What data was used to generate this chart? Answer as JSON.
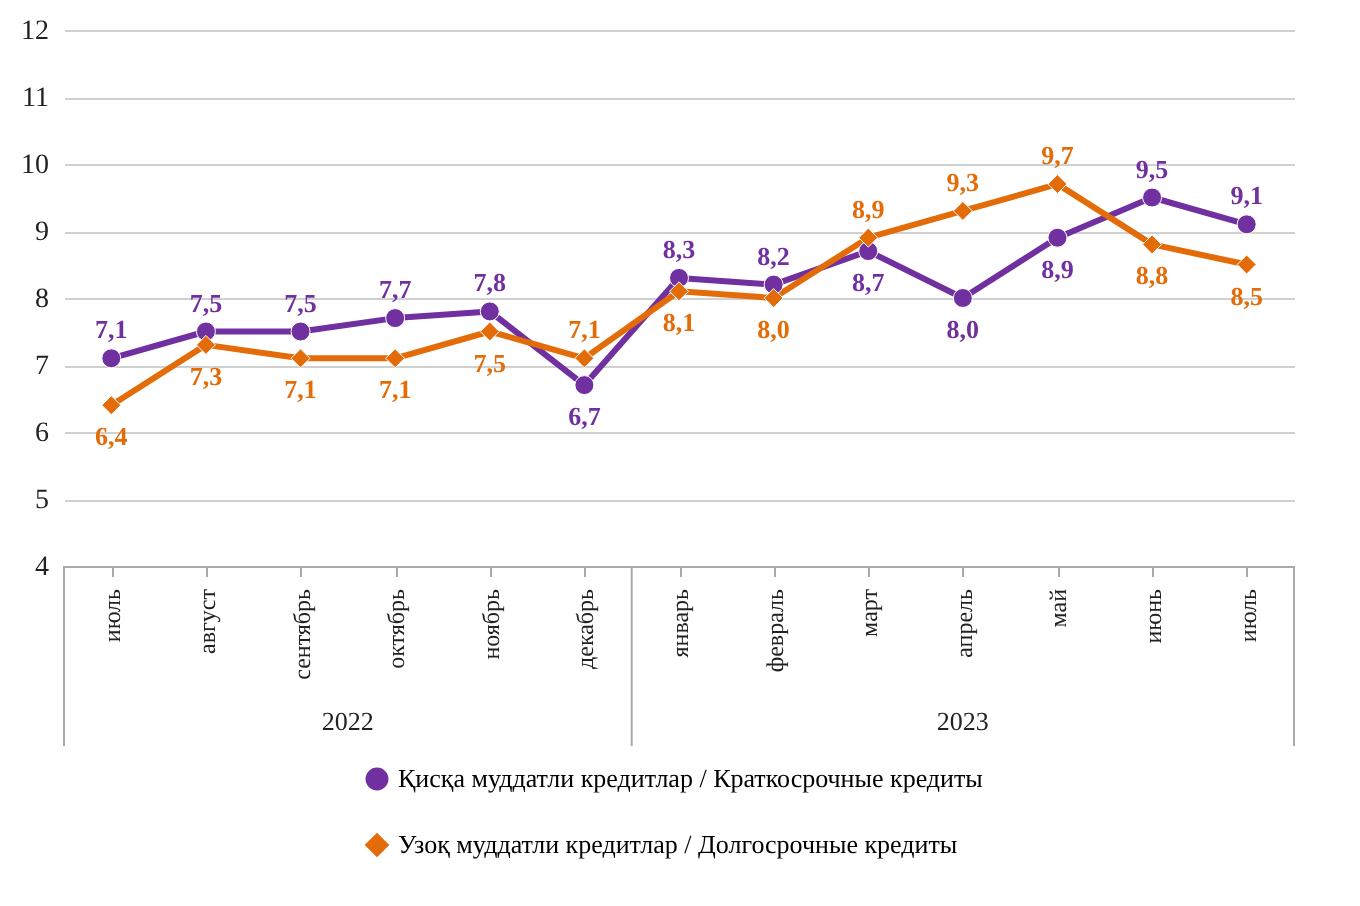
{
  "chart_data": {
    "type": "line",
    "categories": [
      "июль",
      "август",
      "сентябрь",
      "октябрь",
      "ноябрь",
      "декабрь",
      "январь",
      "февраль",
      "март",
      "апрель",
      "май",
      "июнь",
      "июль"
    ],
    "series": [
      {
        "name": "Қисқа муддатли кредитлар  / Краткосрочные кредиты",
        "color": "#7030a0",
        "marker": "circle",
        "values": [
          7.1,
          7.5,
          7.5,
          7.7,
          7.8,
          6.7,
          8.3,
          8.2,
          8.7,
          8.0,
          8.9,
          9.5,
          9.1
        ],
        "value_labels": [
          "7,1",
          "7,5",
          "7,5",
          "7,7",
          "7,8",
          "6,7",
          "8,3",
          "8,2",
          "8,7",
          "8,0",
          "8,9",
          "9,5",
          "9,1"
        ]
      },
      {
        "name": "Узоқ муддатли  кредитлар  / Долгосрочные кредиты",
        "color": "#e36c09",
        "marker": "diamond",
        "values": [
          6.4,
          7.3,
          7.1,
          7.1,
          7.5,
          7.1,
          8.1,
          8.0,
          8.9,
          9.3,
          9.7,
          8.8,
          8.5
        ],
        "value_labels": [
          "6,4",
          "7,3",
          "7,1",
          "7,1",
          "7,5",
          "7,1",
          "8,1",
          "8,0",
          "8,9",
          "9,3",
          "9,7",
          "8,8",
          "8,5"
        ]
      }
    ],
    "annotations": [
      "2022",
      "2023"
    ],
    "ylim": [
      4,
      12
    ],
    "yticks": [
      4,
      5,
      6,
      7,
      8,
      9,
      10,
      11,
      12
    ],
    "grid": "y",
    "legend": "bottom"
  }
}
